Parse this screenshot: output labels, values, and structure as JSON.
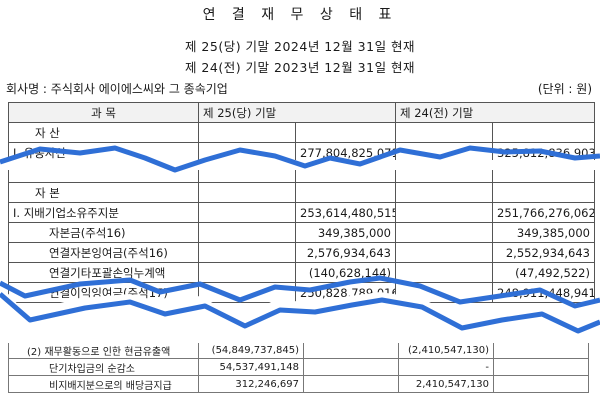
{
  "header": {
    "title": "연 결 재 무 상 태 표",
    "period_current": "제 25(당) 기말  2024년 12월 31일 현재",
    "period_prior": "제 24(전) 기말  2023년 12월 31일 현재",
    "company": "회사명 : 주식회사 에이에스씨와 그 종속기업",
    "unit": "(단위 : 원)"
  },
  "table": {
    "col_subject": "과          목",
    "col_current": "제 25(당) 기말",
    "col_prior": "제 24(전) 기말",
    "rows": [
      {
        "label": "자          산",
        "cur_a": "",
        "cur_b": "",
        "pri_a": "",
        "pri_b": ""
      },
      {
        "label": "I. 유동자산",
        "cur_a": "",
        "cur_b": "277,804,825,071",
        "pri_a": "",
        "pri_b": "325,812,836,903"
      },
      {
        "label": "자          본",
        "cur_a": "",
        "cur_b": "",
        "pri_a": "",
        "pri_b": ""
      },
      {
        "label": "I. 지배기업소유주지분",
        "cur_a": "",
        "cur_b": "253,614,480,515",
        "pri_a": "",
        "pri_b": "251,766,276,062"
      },
      {
        "label": "자본금(주석16)",
        "cur_a": "",
        "cur_b": "349,385,000",
        "pri_a": "",
        "pri_b": "349,385,000"
      },
      {
        "label": "연결자본잉여금(주석16)",
        "cur_a": "",
        "cur_b": "2,576,934,643",
        "pri_a": "",
        "pri_b": "2,552,934,643"
      },
      {
        "label": "연결기타포괄손익누계액",
        "cur_a": "",
        "cur_b": "(140,628,144)",
        "pri_a": "",
        "pri_b": "(47,492,522)"
      },
      {
        "label": "연결이익잉여금(주석17)",
        "cur_a": "",
        "cur_b": "250,828,789,016",
        "pri_a": "",
        "pri_b": "248,911,448,941"
      }
    ]
  },
  "cashflow": {
    "rows": [
      {
        "label": "(2) 재무활동으로 인한 현금유출액",
        "cur_a": "(54,849,737,845)",
        "cur_b": "",
        "pri_a": "(2,410,547,130)",
        "pri_b": ""
      },
      {
        "label": "단기차입금의 순감소",
        "cur_a": "54,537,491,148",
        "cur_b": "",
        "pri_a": "-",
        "pri_b": ""
      },
      {
        "label": "비지배지분으로의 배당금지급",
        "cur_a": "312,246,697",
        "cur_b": "",
        "pri_a": "2,410,547,130",
        "pri_b": ""
      }
    ]
  },
  "colors": {
    "tear_line": "#2f6fd6",
    "border": "#555555"
  }
}
